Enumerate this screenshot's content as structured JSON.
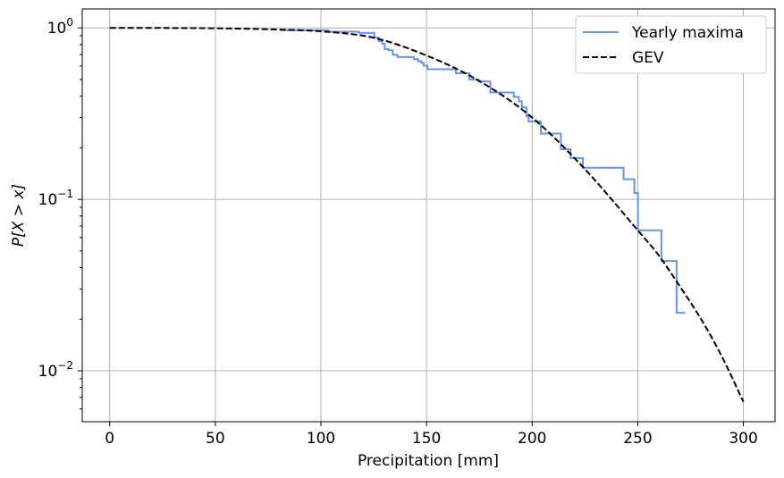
{
  "chart_data": {
    "type": "line",
    "title": "",
    "xlabel": "Precipitation [mm]",
    "ylabel": "P[X > x]",
    "yscale": "log",
    "xlim": [
      -13,
      315
    ],
    "ylim": [
      0.00505,
      1.29
    ],
    "grid": true,
    "legend": "top-right",
    "x_ticks": [
      0,
      50,
      100,
      150,
      200,
      250,
      300
    ],
    "y_ticks": [
      {
        "value": 1,
        "base": "10",
        "exp": "0"
      },
      {
        "value": 0.1,
        "base": "10",
        "exp": "−1"
      },
      {
        "value": 0.01,
        "base": "10",
        "exp": "−2"
      }
    ],
    "series": [
      {
        "name": "Yearly maxima",
        "style": "step",
        "color": "#6495ED",
        "points": [
          [
            81,
            0.968
          ],
          [
            103.5,
            0.95
          ],
          [
            118,
            0.934
          ],
          [
            125.3,
            0.876
          ],
          [
            127.4,
            0.838
          ],
          [
            129,
            0.809
          ],
          [
            130.2,
            0.753
          ],
          [
            132,
            0.741
          ],
          [
            134,
            0.698
          ],
          [
            136.2,
            0.676
          ],
          [
            144,
            0.657
          ],
          [
            146,
            0.639
          ],
          [
            147.5,
            0.626
          ],
          [
            148.6,
            0.602
          ],
          [
            150.4,
            0.574
          ],
          [
            163.9,
            0.544
          ],
          [
            170.3,
            0.501
          ],
          [
            174.6,
            0.487
          ],
          [
            180.2,
            0.42
          ],
          [
            191.3,
            0.396
          ],
          [
            193.7,
            0.373
          ],
          [
            195.1,
            0.344
          ],
          [
            197.3,
            0.305
          ],
          [
            198.3,
            0.285
          ],
          [
            204.1,
            0.242
          ],
          [
            213.6,
            0.196
          ],
          [
            218.2,
            0.174
          ],
          [
            224,
            0.153
          ],
          [
            243.3,
            0.131
          ],
          [
            248.4,
            0.109
          ],
          [
            250.1,
            0.066
          ],
          [
            261.2,
            0.0437
          ],
          [
            268.4,
            0.0218
          ],
          [
            272.5,
            0.0218
          ]
        ]
      },
      {
        "name": "GEV",
        "style": "dashed",
        "color": "#000000",
        "points": [
          [
            0,
            1.0
          ],
          [
            25,
            0.999
          ],
          [
            50,
            0.995
          ],
          [
            80,
            0.978
          ],
          [
            100,
            0.955
          ],
          [
            125,
            0.876
          ],
          [
            150,
            0.69
          ],
          [
            175,
            0.49
          ],
          [
            200,
            0.3
          ],
          [
            225,
            0.15
          ],
          [
            250,
            0.066
          ],
          [
            260,
            0.047
          ],
          [
            270,
            0.031
          ],
          [
            280,
            0.02
          ],
          [
            290,
            0.012
          ],
          [
            300,
            0.0066
          ]
        ]
      }
    ]
  }
}
